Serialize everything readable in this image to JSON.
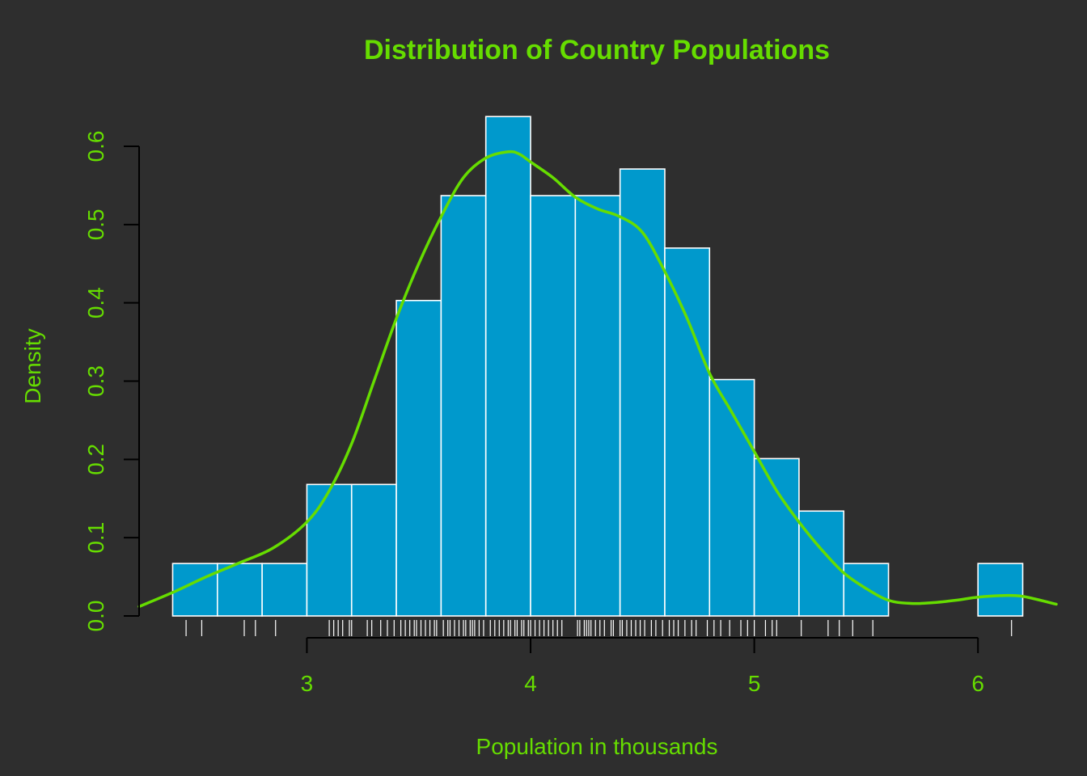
{
  "colors": {
    "background": "#2e2e2e",
    "bar_fill": "#0099cc",
    "bar_border": "#ffffff",
    "curve": "#66dd00",
    "text": "#66dd00",
    "axis": "#000000",
    "rug": "#ffffff"
  },
  "chart_data": {
    "type": "bar",
    "title": "Distribution of Country Populations",
    "xlabel": "Population in thousands",
    "ylabel": "Density",
    "xlim": [
      2.25,
      6.35
    ],
    "ylim": [
      0,
      0.6
    ],
    "grid": false,
    "legend": "none",
    "x_ticks": [
      3,
      4,
      5,
      6
    ],
    "y_ticks": [
      0.0,
      0.1,
      0.2,
      0.3,
      0.4,
      0.5,
      0.6
    ],
    "histogram": {
      "bin_width": 0.2,
      "bins": [
        {
          "start": 2.4,
          "end": 2.6,
          "density": 0.067
        },
        {
          "start": 2.6,
          "end": 2.8,
          "density": 0.067
        },
        {
          "start": 2.8,
          "end": 3.0,
          "density": 0.067
        },
        {
          "start": 3.0,
          "end": 3.2,
          "density": 0.168
        },
        {
          "start": 3.2,
          "end": 3.4,
          "density": 0.168
        },
        {
          "start": 3.4,
          "end": 3.6,
          "density": 0.403
        },
        {
          "start": 3.6,
          "end": 3.8,
          "density": 0.537
        },
        {
          "start": 3.8,
          "end": 4.0,
          "density": 0.638
        },
        {
          "start": 4.0,
          "end": 4.2,
          "density": 0.537
        },
        {
          "start": 4.2,
          "end": 4.4,
          "density": 0.537
        },
        {
          "start": 4.4,
          "end": 4.6,
          "density": 0.571
        },
        {
          "start": 4.6,
          "end": 4.8,
          "density": 0.47
        },
        {
          "start": 4.8,
          "end": 5.0,
          "density": 0.302
        },
        {
          "start": 5.0,
          "end": 5.2,
          "density": 0.201
        },
        {
          "start": 5.2,
          "end": 5.4,
          "density": 0.134
        },
        {
          "start": 5.4,
          "end": 5.6,
          "density": 0.067
        },
        {
          "start": 5.6,
          "end": 5.8,
          "density": 0.0
        },
        {
          "start": 5.8,
          "end": 6.0,
          "density": 0.0
        },
        {
          "start": 6.0,
          "end": 6.2,
          "density": 0.067
        }
      ]
    },
    "density_curve": {
      "x": [
        2.25,
        2.4,
        2.55,
        2.7,
        2.85,
        3.0,
        3.1,
        3.2,
        3.3,
        3.4,
        3.5,
        3.6,
        3.7,
        3.8,
        3.9,
        3.95,
        4.0,
        4.1,
        4.2,
        4.3,
        4.4,
        4.5,
        4.6,
        4.7,
        4.8,
        4.9,
        5.0,
        5.1,
        5.2,
        5.3,
        5.4,
        5.5,
        5.6,
        5.7,
        5.8,
        5.9,
        6.0,
        6.1,
        6.2,
        6.35
      ],
      "y": [
        0.012,
        0.03,
        0.05,
        0.068,
        0.087,
        0.12,
        0.16,
        0.22,
        0.3,
        0.38,
        0.45,
        0.51,
        0.56,
        0.585,
        0.593,
        0.59,
        0.58,
        0.56,
        0.535,
        0.52,
        0.51,
        0.49,
        0.44,
        0.38,
        0.31,
        0.26,
        0.21,
        0.16,
        0.12,
        0.085,
        0.055,
        0.035,
        0.02,
        0.016,
        0.017,
        0.02,
        0.024,
        0.026,
        0.025,
        0.015
      ]
    },
    "rug": [
      2.46,
      2.53,
      2.72,
      2.77,
      2.86,
      3.1,
      3.12,
      3.14,
      3.16,
      3.19,
      3.2,
      3.27,
      3.29,
      3.33,
      3.36,
      3.39,
      3.42,
      3.44,
      3.46,
      3.48,
      3.49,
      3.51,
      3.53,
      3.55,
      3.57,
      3.58,
      3.61,
      3.63,
      3.64,
      3.66,
      3.68,
      3.7,
      3.71,
      3.73,
      3.74,
      3.75,
      3.77,
      3.79,
      3.82,
      3.84,
      3.86,
      3.88,
      3.9,
      3.91,
      3.93,
      3.94,
      3.96,
      3.97,
      3.99,
      4.0,
      4.02,
      4.04,
      4.06,
      4.08,
      4.1,
      4.12,
      4.14,
      4.21,
      4.22,
      4.24,
      4.25,
      4.26,
      4.27,
      4.29,
      4.31,
      4.33,
      4.36,
      4.37,
      4.4,
      4.41,
      4.43,
      4.45,
      4.47,
      4.49,
      4.51,
      4.54,
      4.56,
      4.59,
      4.62,
      4.64,
      4.66,
      4.69,
      4.72,
      4.74,
      4.79,
      4.82,
      4.85,
      4.89,
      4.94,
      4.97,
      5.0,
      5.05,
      5.08,
      5.1,
      5.21,
      5.33,
      5.38,
      5.44,
      5.53,
      6.15
    ]
  }
}
